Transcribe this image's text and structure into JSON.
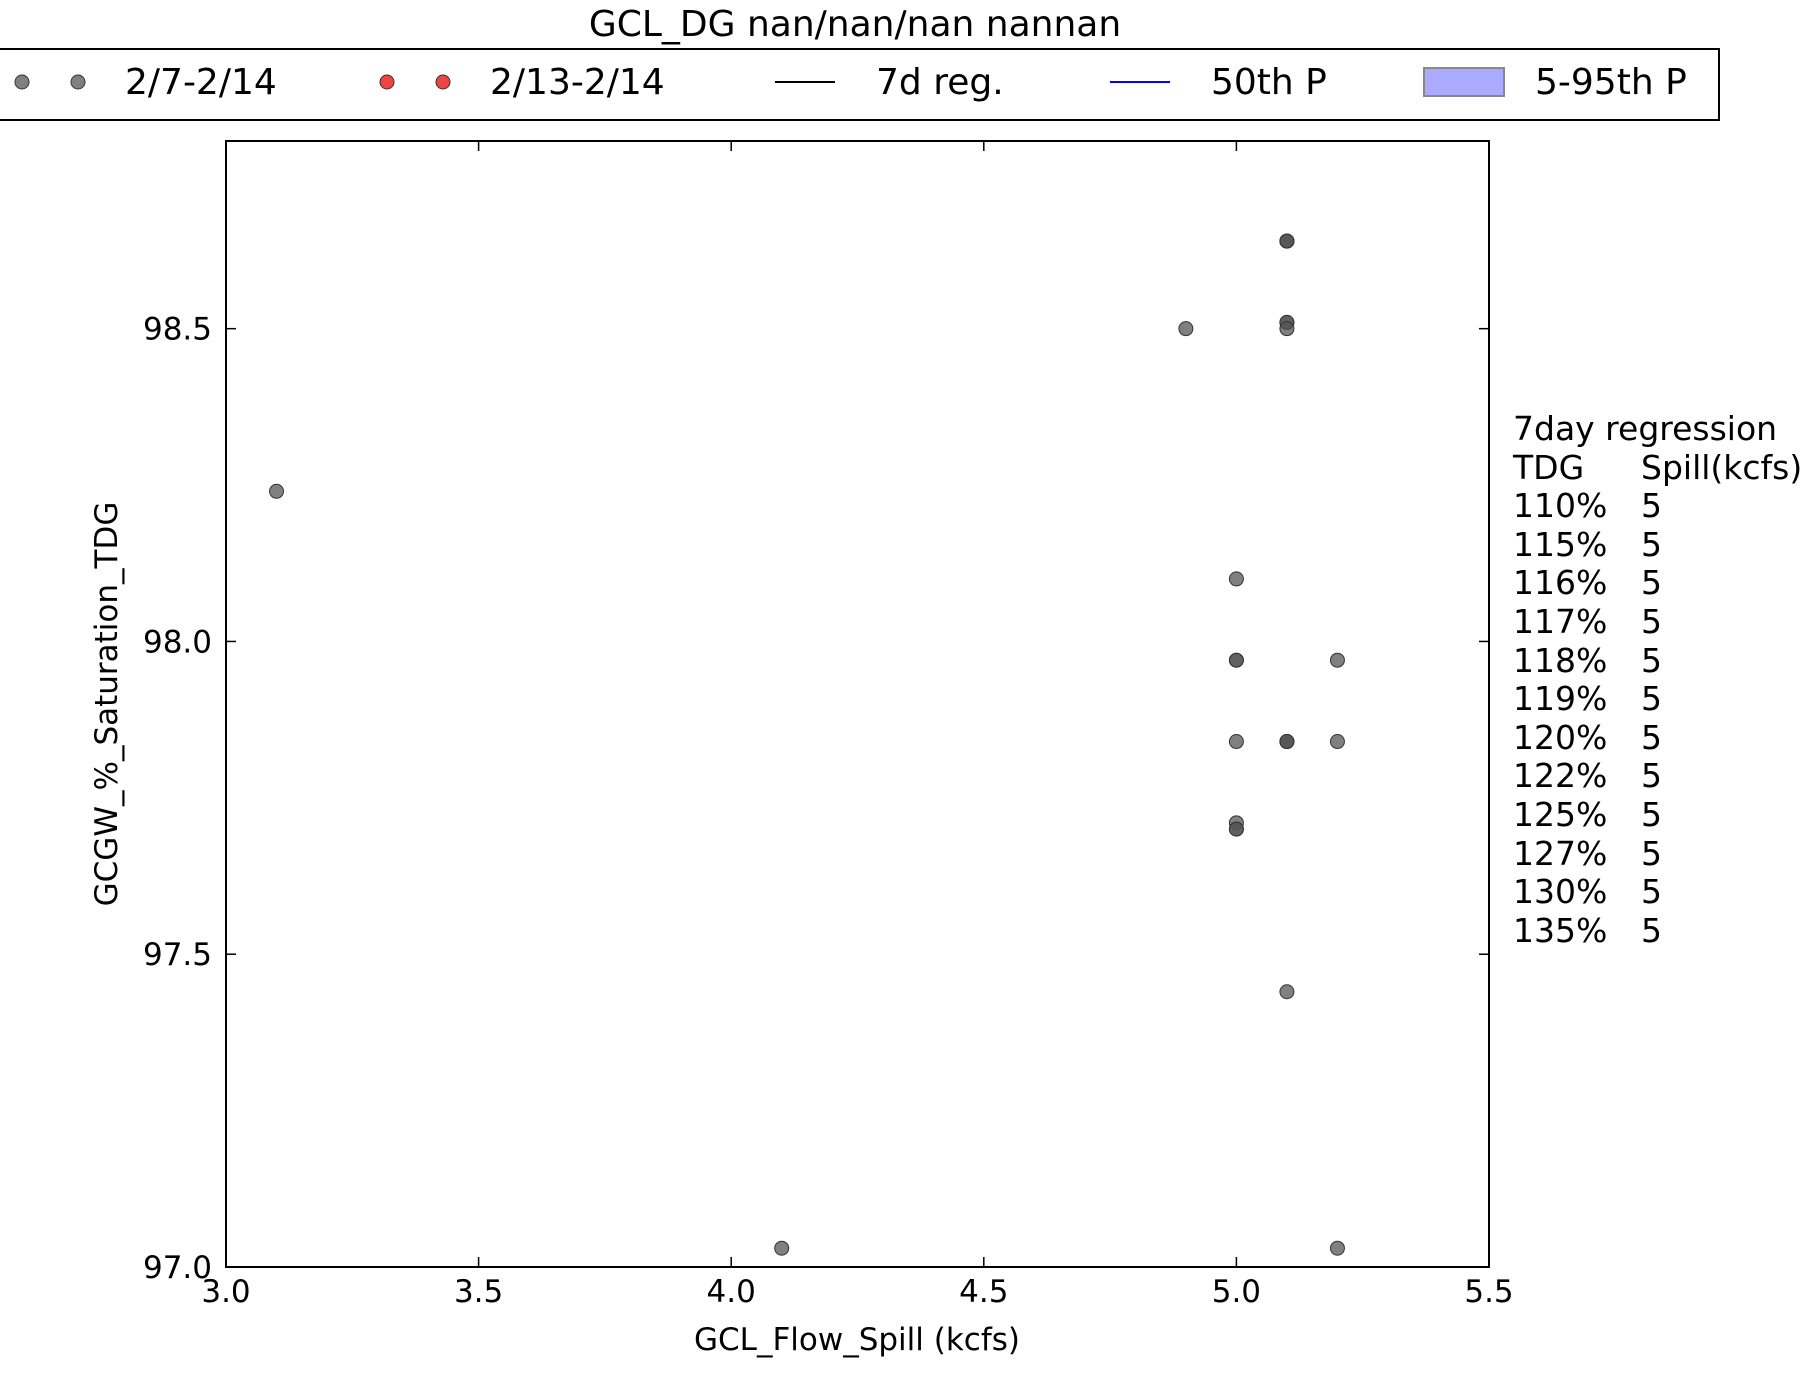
{
  "chart_data": {
    "type": "scatter",
    "title": "GCL_DG nan/nan/nan nannan",
    "xlabel": "GCL_Flow_Spill (kcfs)",
    "ylabel": "GCGW_%_Saturation_TDG",
    "xlim": [
      3.0,
      5.5
    ],
    "ylim": [
      97.0,
      98.8
    ],
    "xticks": [
      "3.0",
      "3.5",
      "4.0",
      "4.5",
      "5.0",
      "5.5"
    ],
    "yticks": [
      "97.0",
      "97.5",
      "98.0",
      "98.5"
    ],
    "grid": false,
    "legend_position": "top",
    "legend": [
      {
        "label": "2/7-2/14",
        "kind": "marker-pair",
        "color": "#808080"
      },
      {
        "label": "2/13-2/14",
        "kind": "marker-pair",
        "color": "#ef4444"
      },
      {
        "label": "7d reg.",
        "kind": "line",
        "color": "#000000"
      },
      {
        "label": "50th P",
        "kind": "line",
        "color": "#0000ff"
      },
      {
        "label": "5-95th P",
        "kind": "patch",
        "color": "#aaaaff"
      }
    ],
    "series": [
      {
        "name": "2/7-2/14",
        "color": "#555555",
        "points": [
          {
            "x": 3.1,
            "y": 98.24
          },
          {
            "x": 4.1,
            "y": 97.03
          },
          {
            "x": 4.9,
            "y": 98.5
          },
          {
            "x": 5.0,
            "y": 98.1
          },
          {
            "x": 5.0,
            "y": 97.97
          },
          {
            "x": 5.0,
            "y": 97.97
          },
          {
            "x": 5.0,
            "y": 97.84
          },
          {
            "x": 5.0,
            "y": 97.71
          },
          {
            "x": 5.0,
            "y": 97.7
          },
          {
            "x": 5.0,
            "y": 97.7
          },
          {
            "x": 5.1,
            "y": 98.64
          },
          {
            "x": 5.1,
            "y": 98.64
          },
          {
            "x": 5.1,
            "y": 98.64
          },
          {
            "x": 5.1,
            "y": 98.51
          },
          {
            "x": 5.1,
            "y": 98.51
          },
          {
            "x": 5.1,
            "y": 98.5
          },
          {
            "x": 5.1,
            "y": 97.84
          },
          {
            "x": 5.1,
            "y": 97.84
          },
          {
            "x": 5.1,
            "y": 97.84
          },
          {
            "x": 5.1,
            "y": 97.44
          },
          {
            "x": 5.2,
            "y": 97.97
          },
          {
            "x": 5.2,
            "y": 97.84
          },
          {
            "x": 5.2,
            "y": 97.03
          }
        ]
      },
      {
        "name": "2/13-2/14",
        "color": "#ef4444",
        "points": []
      }
    ]
  },
  "regression_table": {
    "title": "7day regression",
    "col1": "TDG",
    "col2": "Spill(kcfs)",
    "rows": [
      {
        "tdg": "110%",
        "spill": "5"
      },
      {
        "tdg": "115%",
        "spill": "5"
      },
      {
        "tdg": "116%",
        "spill": "5"
      },
      {
        "tdg": "117%",
        "spill": "5"
      },
      {
        "tdg": "118%",
        "spill": "5"
      },
      {
        "tdg": "119%",
        "spill": "5"
      },
      {
        "tdg": "120%",
        "spill": "5"
      },
      {
        "tdg": "122%",
        "spill": "5"
      },
      {
        "tdg": "125%",
        "spill": "5"
      },
      {
        "tdg": "127%",
        "spill": "5"
      },
      {
        "tdg": "130%",
        "spill": "5"
      },
      {
        "tdg": "135%",
        "spill": "5"
      }
    ]
  }
}
